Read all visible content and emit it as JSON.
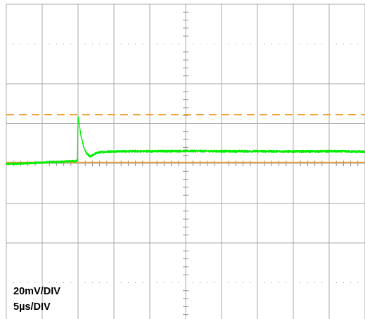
{
  "chart_data": {
    "type": "line",
    "title": "",
    "xlabel": "",
    "ylabel": "",
    "x_unit": "µs",
    "y_unit": "mV",
    "x_divisions": 10,
    "y_divisions": 8,
    "volts_per_div": 20,
    "time_per_div": 5,
    "xlim": [
      0,
      50
    ],
    "ylim": [
      -80,
      80
    ],
    "grid": true,
    "center_axis_ticks": true,
    "scale_labels": {
      "volts": "20mV/DIV",
      "time": "5µs/DIV"
    },
    "series": [
      {
        "role": "signal",
        "color": "#00ee00",
        "baseline_mV": 0,
        "points": [
          [
            0.0,
            -0.3
          ],
          [
            2.0,
            -0.1
          ],
          [
            4.0,
            0.2
          ],
          [
            6.0,
            0.6
          ],
          [
            8.0,
            0.9
          ],
          [
            9.9,
            1.3
          ],
          [
            10.0,
            23.5
          ],
          [
            10.4,
            14.0
          ],
          [
            10.8,
            8.0
          ],
          [
            11.2,
            5.0
          ],
          [
            11.7,
            3.3
          ],
          [
            12.3,
            4.8
          ],
          [
            13.0,
            5.6
          ],
          [
            14.5,
            6.0
          ],
          [
            17.0,
            6.1
          ],
          [
            20.0,
            6.1
          ],
          [
            25.0,
            6.2
          ],
          [
            30.0,
            6.1
          ],
          [
            35.0,
            6.1
          ],
          [
            40.0,
            6.0
          ],
          [
            45.0,
            6.1
          ],
          [
            50.0,
            5.9
          ]
        ],
        "noise_mV": 0.55
      },
      {
        "role": "reference-level",
        "color": "#f0a030",
        "style": "solid",
        "y": 0.5
      },
      {
        "role": "reference-level",
        "color": "#f0a030",
        "style": "dashed",
        "y": 24.5
      }
    ]
  },
  "colors": {
    "background": "#ffffff",
    "grid": "#a8a8a8",
    "signal": "#00ee00",
    "reference": "#f0a030",
    "text": "#000000"
  }
}
